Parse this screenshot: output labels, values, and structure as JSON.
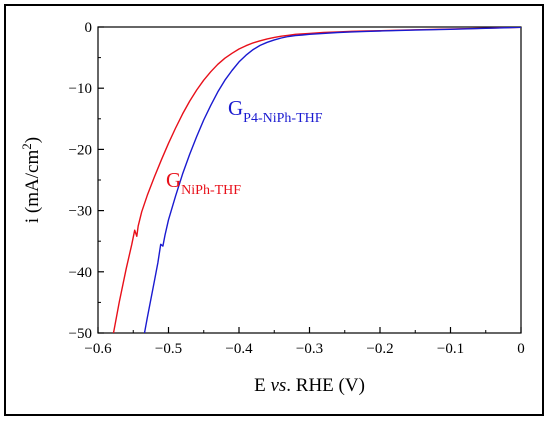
{
  "chart_data": {
    "type": "line",
    "xlabel_parts": [
      "E ",
      "vs",
      ". RHE (V)"
    ],
    "ylabel_parts": [
      "i (mA/cm",
      "2",
      ")"
    ],
    "xlim": [
      -0.6,
      0
    ],
    "ylim": [
      -50,
      0
    ],
    "x_ticks": [
      -0.6,
      -0.5,
      -0.4,
      -0.3,
      -0.2,
      -0.1,
      0
    ],
    "x_tick_labels": [
      "−0.6",
      "−0.5",
      "−0.4",
      "−0.3",
      "−0.2",
      "−0.1",
      "0"
    ],
    "y_ticks": [
      0,
      -10,
      -20,
      -30,
      -40,
      -50
    ],
    "y_tick_labels": [
      "0",
      "−10",
      "−20",
      "−30",
      "−40",
      "−50"
    ],
    "grid": false,
    "series": [
      {
        "label_main": "G",
        "label_sub": "NiPh-THF",
        "color": "#e8101a",
        "x": [
          -0.578,
          -0.57,
          -0.56,
          -0.552,
          -0.548,
          -0.545,
          -0.543,
          -0.538,
          -0.53,
          -0.52,
          -0.51,
          -0.5,
          -0.49,
          -0.48,
          -0.47,
          -0.46,
          -0.45,
          -0.44,
          -0.43,
          -0.42,
          -0.41,
          -0.4,
          -0.39,
          -0.38,
          -0.37,
          -0.36,
          -0.35,
          -0.34,
          -0.33,
          -0.32,
          -0.3,
          -0.28,
          -0.26,
          -0.24,
          -0.22,
          -0.2,
          -0.15,
          -0.1,
          -0.05,
          0
        ],
        "y": [
          -50,
          -45,
          -39.5,
          -35.5,
          -33.2,
          -34.2,
          -32.5,
          -30.2,
          -27.5,
          -24.5,
          -21.7,
          -19,
          -16.5,
          -14.2,
          -12.1,
          -10.3,
          -8.7,
          -7.3,
          -6.1,
          -5.1,
          -4.3,
          -3.6,
          -3.05,
          -2.6,
          -2.25,
          -1.95,
          -1.7,
          -1.5,
          -1.35,
          -1.2,
          -1.05,
          -0.9,
          -0.8,
          -0.7,
          -0.65,
          -0.6,
          -0.45,
          -0.35,
          -0.2,
          -0.05
        ]
      },
      {
        "label_main": "G",
        "label_sub": "P4-NiPh-THF",
        "color": "#1a1ad0",
        "x": [
          -0.534,
          -0.53,
          -0.52,
          -0.515,
          -0.511,
          -0.508,
          -0.505,
          -0.5,
          -0.49,
          -0.48,
          -0.47,
          -0.46,
          -0.45,
          -0.44,
          -0.43,
          -0.42,
          -0.41,
          -0.4,
          -0.39,
          -0.38,
          -0.37,
          -0.36,
          -0.35,
          -0.34,
          -0.33,
          -0.32,
          -0.31,
          -0.3,
          -0.28,
          -0.26,
          -0.24,
          -0.22,
          -0.2,
          -0.15,
          -0.1,
          -0.05,
          0
        ],
        "y": [
          -50,
          -47.5,
          -41.5,
          -38.5,
          -35.5,
          -35.8,
          -34,
          -31.5,
          -27.6,
          -24,
          -20.8,
          -17.9,
          -15.2,
          -12.8,
          -10.6,
          -8.7,
          -7.1,
          -5.7,
          -4.6,
          -3.7,
          -3,
          -2.5,
          -2.1,
          -1.8,
          -1.55,
          -1.4,
          -1.3,
          -1.2,
          -1.05,
          -0.9,
          -0.8,
          -0.72,
          -0.65,
          -0.5,
          -0.38,
          -0.22,
          -0.05
        ]
      }
    ]
  }
}
